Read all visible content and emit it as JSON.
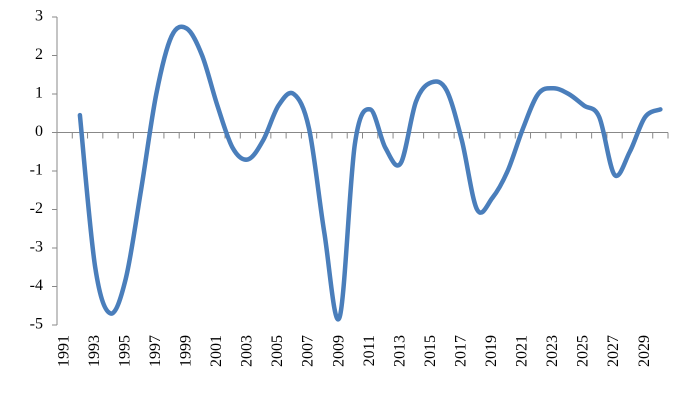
{
  "chart_data": {
    "type": "line",
    "categories": [
      "1991",
      null,
      "1993",
      null,
      "1995",
      null,
      "1997",
      null,
      "1999",
      null,
      "2001",
      null,
      "2003",
      null,
      "2005",
      null,
      "2007",
      null,
      "2009",
      null,
      "2011",
      null,
      "2013",
      null,
      "2015",
      null,
      "2017",
      null,
      "2019",
      null,
      "2021",
      null,
      "2023",
      null,
      "2025",
      null,
      "2027",
      null,
      "2029",
      null
    ],
    "series": [
      {
        "color": "#4a7ebb",
        "values": [
          null,
          0.45,
          -3.5,
          -4.7,
          -3.8,
          -1.5,
          1.0,
          2.5,
          2.7,
          2.0,
          0.7,
          -0.4,
          -0.7,
          -0.2,
          0.7,
          1.0,
          0.1,
          -2.6,
          -4.8,
          -0.3,
          0.6,
          -0.4,
          -0.8,
          0.8,
          1.3,
          1.1,
          -0.2,
          -2.0,
          -1.7,
          -1.0,
          0.1,
          1.0,
          1.15,
          1.0,
          0.7,
          0.4,
          -1.1,
          -0.5,
          0.4,
          0.6
        ]
      }
    ],
    "ylim": [
      -5,
      3
    ],
    "yticks": [
      -5,
      -4,
      -3,
      -2,
      -1,
      0,
      1,
      2,
      3
    ],
    "grid": false
  }
}
